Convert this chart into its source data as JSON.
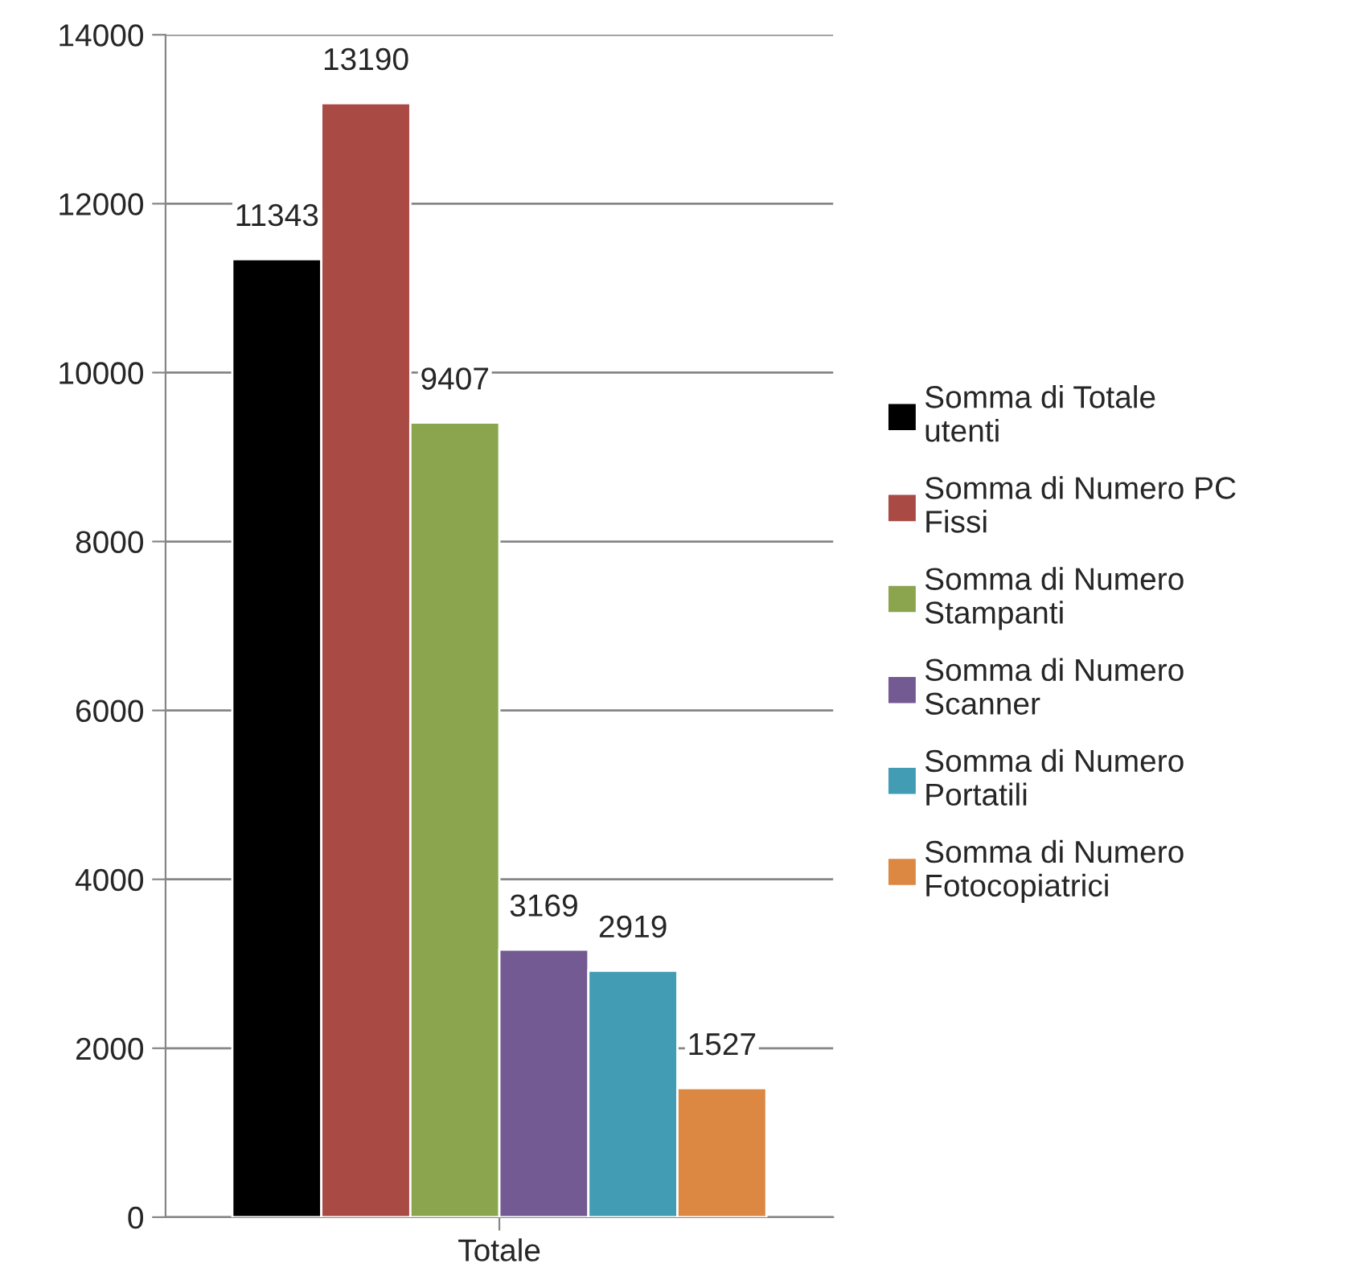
{
  "chart_data": {
    "type": "bar",
    "categories": [
      "Totale"
    ],
    "series": [
      {
        "name": "Somma di Totale utenti",
        "color": "#000000",
        "values": [
          11343
        ]
      },
      {
        "name": "Somma di Numero PC Fissi",
        "color": "#a94a45",
        "values": [
          13190
        ]
      },
      {
        "name": "Somma di Numero Stampanti",
        "color": "#8ba54e",
        "values": [
          9407
        ]
      },
      {
        "name": "Somma di Numero Scanner",
        "color": "#745a92",
        "values": [
          3169
        ]
      },
      {
        "name": "Somma di Numero Portatili",
        "color": "#419cb4",
        "values": [
          2919
        ]
      },
      {
        "name": "Somma di Numero Fotocopiatrici",
        "color": "#dc8843",
        "values": [
          1527
        ]
      }
    ],
    "ylim": [
      0,
      14000
    ],
    "yticks": [
      0,
      2000,
      4000,
      6000,
      8000,
      10000,
      12000,
      14000
    ],
    "grid": "y",
    "legend": "right",
    "data_labels": true
  }
}
